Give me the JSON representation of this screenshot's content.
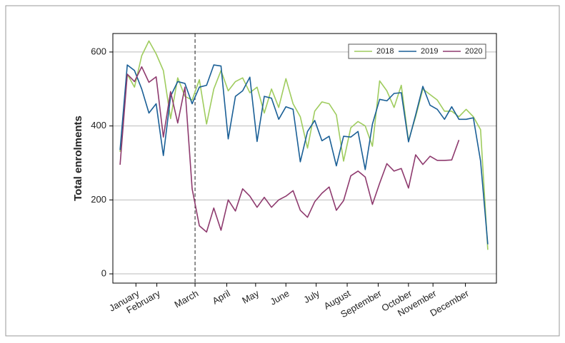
{
  "chart_data": {
    "type": "line",
    "y_label": "Total enrolments",
    "x": [
      1,
      2,
      3,
      4,
      5,
      6,
      7,
      8,
      9,
      10,
      11,
      12,
      13,
      14,
      15,
      16,
      17,
      18,
      19,
      20,
      21,
      22,
      23,
      24,
      25,
      26,
      27,
      28,
      29,
      30,
      31,
      32,
      33,
      34,
      35,
      36,
      37,
      38,
      39,
      40,
      41,
      42,
      43,
      44,
      45,
      46,
      47,
      48,
      49,
      50,
      51,
      52
    ],
    "xlim": [
      0,
      53.2
    ],
    "xticks": [
      {
        "value": 3.2,
        "label": "January"
      },
      {
        "value": 6.1,
        "label": "February"
      },
      {
        "value": 11.4,
        "label": "March"
      },
      {
        "value": 15.8,
        "label": "April"
      },
      {
        "value": 19.8,
        "label": "May"
      },
      {
        "value": 24,
        "label": "June"
      },
      {
        "value": 28.2,
        "label": "July"
      },
      {
        "value": 32.5,
        "label": "August"
      },
      {
        "value": 36.8,
        "label": "September"
      },
      {
        "value": 41,
        "label": "October"
      },
      {
        "value": 44.4,
        "label": "November"
      },
      {
        "value": 48.9,
        "label": "December"
      }
    ],
    "vline": 11.4,
    "ylim": [
      -25,
      650
    ],
    "yticks": [
      0,
      200,
      400,
      600
    ],
    "grid": true,
    "legend": "top-right",
    "series": [
      {
        "name": "2018",
        "color": "#9fcc5e",
        "values": [
          330,
          540,
          505,
          590,
          630,
          595,
          550,
          420,
          530,
          480,
          470,
          525,
          405,
          500,
          550,
          495,
          520,
          530,
          490,
          505,
          435,
          500,
          450,
          528,
          460,
          425,
          340,
          440,
          465,
          460,
          430,
          305,
          395,
          412,
          400,
          345,
          522,
          495,
          450,
          510,
          360,
          425,
          500,
          485,
          470,
          440,
          440,
          425,
          445,
          425,
          390,
          65
        ]
      },
      {
        "name": "2019",
        "color": "#1a5f96",
        "values": [
          335,
          565,
          550,
          500,
          435,
          460,
          320,
          480,
          520,
          515,
          460,
          505,
          510,
          565,
          562,
          365,
          480,
          495,
          532,
          358,
          480,
          475,
          418,
          452,
          445,
          303,
          385,
          415,
          360,
          372,
          292,
          372,
          370,
          385,
          282,
          405,
          472,
          468,
          488,
          490,
          357,
          430,
          507,
          456,
          445,
          418,
          452,
          418,
          418,
          422,
          305,
          80
        ]
      },
      {
        "name": "2020",
        "color": "#8e3a6e",
        "values": [
          295,
          540,
          520,
          560,
          518,
          533,
          370,
          493,
          408,
          505,
          230,
          130,
          113,
          178,
          118,
          200,
          170,
          230,
          210,
          180,
          207,
          180,
          200,
          210,
          225,
          172,
          153,
          195,
          218,
          235,
          172,
          198,
          265,
          278,
          262,
          188,
          245,
          298,
          278,
          285,
          232,
          322,
          296,
          318,
          307,
          307,
          308,
          362,
          null,
          null,
          null,
          null
        ]
      }
    ]
  }
}
